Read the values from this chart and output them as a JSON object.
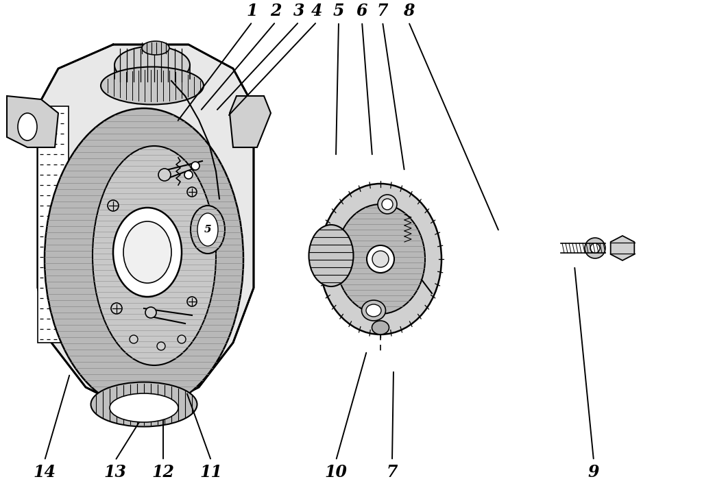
{
  "background_color": "#ffffff",
  "line_color": "#000000",
  "figsize": [
    10.24,
    7.31
  ],
  "dpi": 100,
  "top_labels": [
    [
      "1",
      368,
      32,
      258,
      178
    ],
    [
      "2",
      402,
      32,
      292,
      162
    ],
    [
      "3",
      436,
      32,
      315,
      162
    ],
    [
      "4",
      462,
      32,
      332,
      170
    ],
    [
      "5",
      494,
      32,
      490,
      228
    ],
    [
      "6",
      528,
      32,
      543,
      228
    ],
    [
      "7",
      558,
      32,
      590,
      250
    ],
    [
      "8",
      596,
      32,
      728,
      338
    ]
  ],
  "bottom_labels": [
    [
      "9",
      866,
      672,
      838,
      388
    ],
    [
      "10",
      490,
      672,
      535,
      512
    ],
    [
      "7",
      572,
      672,
      574,
      540
    ],
    [
      "11",
      308,
      672,
      272,
      572
    ],
    [
      "12",
      238,
      672,
      238,
      588
    ],
    [
      "13",
      168,
      672,
      208,
      608
    ],
    [
      "14",
      65,
      672,
      102,
      545
    ]
  ],
  "label_fontsize": 17,
  "lw_leader": 1.4
}
